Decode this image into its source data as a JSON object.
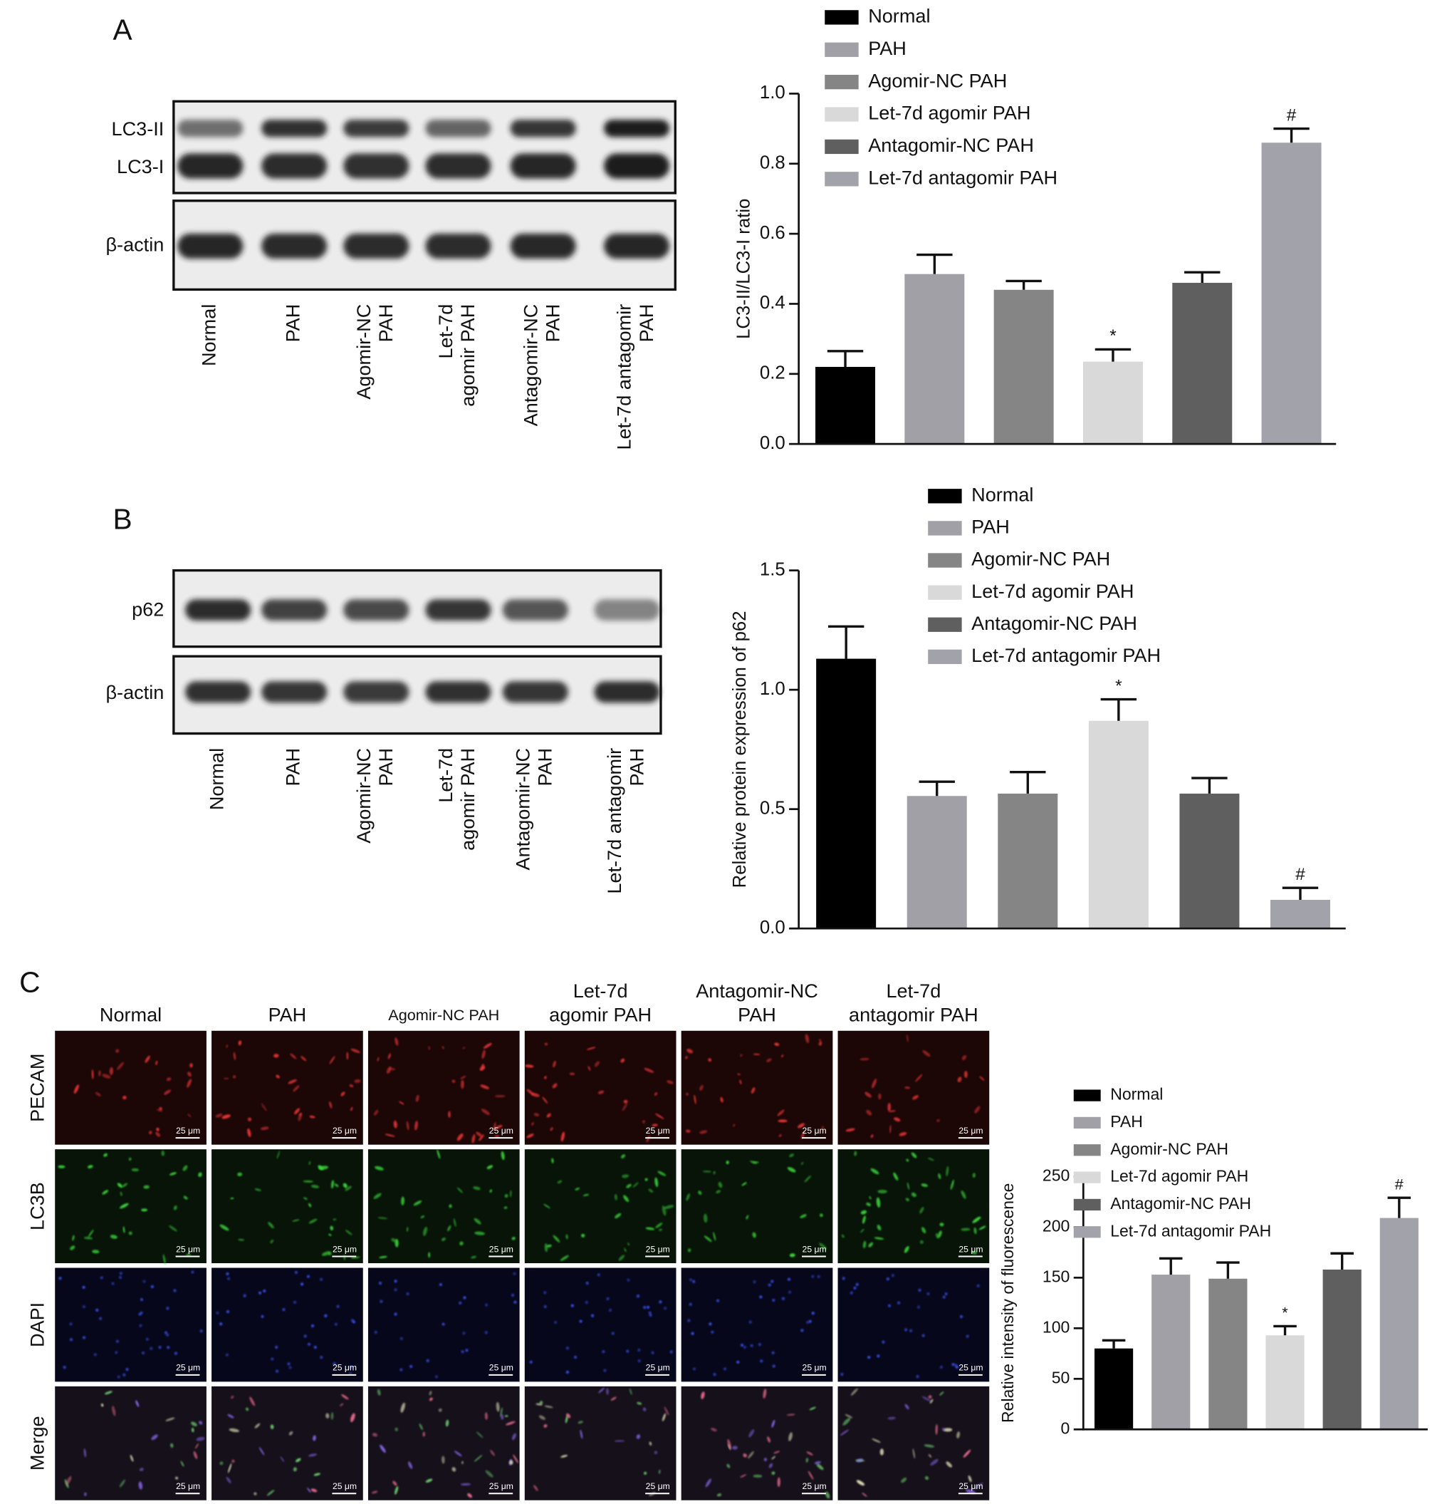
{
  "panel_labels": [
    "A",
    "B",
    "C"
  ],
  "blot_a": {
    "rows": [
      "LC3-II",
      "LC3-I",
      "β-actin"
    ],
    "lanes": [
      [
        "Normal"
      ],
      [
        "PAH"
      ],
      [
        "Agomir-NC",
        "PAH"
      ],
      [
        "Let-7d",
        "agomir PAH"
      ],
      [
        "Antagomir-NC",
        "PAH"
      ],
      [
        "Let-7d antagomir",
        "PAH"
      ]
    ]
  },
  "blot_b": {
    "rows": [
      "p62",
      "β-actin"
    ],
    "lanes": [
      [
        "Normal"
      ],
      [
        "PAH"
      ],
      [
        "Agomir-NC",
        "PAH"
      ],
      [
        "Let-7d",
        "agomir PAH"
      ],
      [
        "Antagomir-NC",
        "PAH"
      ],
      [
        "Let-7d antagomir",
        "PAH"
      ]
    ]
  },
  "imaging": {
    "columns": [
      [
        "Normal"
      ],
      [
        "PAH"
      ],
      [
        "Agomir-NC PAH"
      ],
      [
        "Let-7d",
        "agomir PAH"
      ],
      [
        "Antagomir-NC",
        "PAH"
      ],
      [
        "Let-7d",
        "antagomir PAH"
      ]
    ],
    "rows": [
      "PECAM",
      "LC3B",
      "DAPI",
      "Merge"
    ],
    "scale_bar": "25 μm"
  },
  "chart_data": [
    {
      "type": "bar",
      "ylabel": "LC3-II/LC3-I ratio",
      "categories": [
        "Normal",
        "PAH",
        "Agomir-NC PAH",
        "Let-7d agomir PAH",
        "Antagomir-NC PAH",
        "Let-7d antagomir PAH"
      ],
      "colors": [
        "#000000",
        "#a0a0a6",
        "#858585",
        "#d9d9d9",
        "#5f5f5f",
        "#a2a2aa"
      ],
      "values": [
        0.22,
        0.485,
        0.44,
        0.235,
        0.46,
        0.86
      ],
      "errors": [
        0.045,
        0.055,
        0.025,
        0.035,
        0.03,
        0.04
      ],
      "ylim": [
        0,
        1.0
      ],
      "yticks": [
        {
          "value": 0,
          "label": "0.0"
        },
        {
          "value": 0.2,
          "label": "0.2"
        },
        {
          "value": 0.4,
          "label": "0.4"
        },
        {
          "value": 0.6,
          "label": "0.6"
        },
        {
          "value": 0.8,
          "label": "0.8"
        },
        {
          "value": 1.0,
          "label": "1.0"
        }
      ],
      "annotations": [
        {
          "category": "Let-7d agomir PAH",
          "text": "*"
        },
        {
          "category": "Let-7d antagomir PAH",
          "text": "#"
        }
      ]
    },
    {
      "type": "bar",
      "ylabel": "Relative protein expression of p62",
      "categories": [
        "Normal",
        "PAH",
        "Agomir-NC PAH",
        "Let-7d agomir PAH",
        "Antagomir-NC PAH",
        "Let-7d antagomir PAH"
      ],
      "colors": [
        "#000000",
        "#a0a0a6",
        "#858585",
        "#d9d9d9",
        "#5f5f5f",
        "#a2a2aa"
      ],
      "values": [
        1.13,
        0.555,
        0.565,
        0.87,
        0.565,
        0.12
      ],
      "errors": [
        0.135,
        0.06,
        0.09,
        0.09,
        0.065,
        0.05
      ],
      "ylim": [
        0,
        1.5
      ],
      "yticks": [
        {
          "value": 0,
          "label": "0.0"
        },
        {
          "value": 0.5,
          "label": "0.5"
        },
        {
          "value": 1.0,
          "label": "1.0"
        },
        {
          "value": 1.5,
          "label": "1.5"
        }
      ],
      "annotations": [
        {
          "category": "Let-7d agomir PAH",
          "text": "*"
        },
        {
          "category": "Let-7d antagomir PAH",
          "text": "#"
        }
      ]
    },
    {
      "type": "bar",
      "ylabel": "Relative intensity of fluorescence",
      "categories": [
        "Normal",
        "PAH",
        "Agomir-NC PAH",
        "Let-7d agomir PAH",
        "Antagomir-NC PAH",
        "Let-7d antagomir PAH"
      ],
      "colors": [
        "#000000",
        "#a0a0a6",
        "#858585",
        "#d9d9d9",
        "#5f5f5f",
        "#a2a2aa"
      ],
      "values": [
        80,
        153,
        149,
        93,
        158,
        209
      ],
      "errors": [
        8,
        16,
        16,
        9,
        16,
        20
      ],
      "ylim": [
        0,
        250
      ],
      "yticks": [
        0,
        50,
        100,
        150,
        200,
        250
      ],
      "annotations": [
        {
          "category": "Let-7d agomir PAH",
          "text": "*"
        },
        {
          "category": "Let-7d antagomir PAH",
          "text": "#"
        }
      ]
    }
  ]
}
